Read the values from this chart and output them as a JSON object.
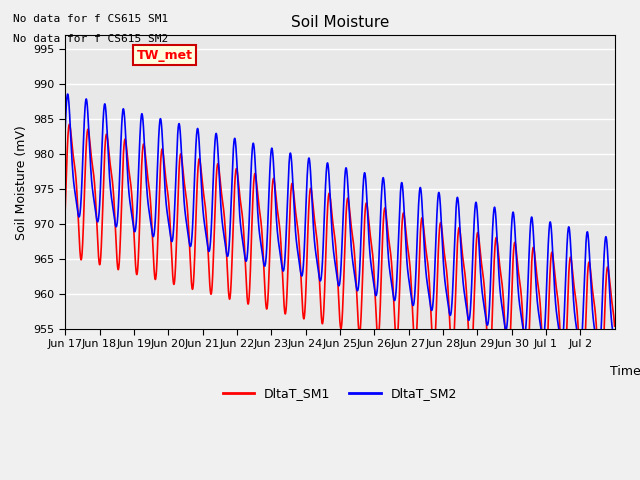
{
  "title": "Soil Moisture",
  "ylabel": "Soil Moisture (mV)",
  "xlabel": "Time",
  "ylim": [
    955,
    997
  ],
  "yticks": [
    955,
    960,
    965,
    970,
    975,
    980,
    985,
    990,
    995
  ],
  "line1_color": "#ff0000",
  "line2_color": "#0000ff",
  "line1_label": "DltaT_SM1",
  "line2_label": "DltaT_SM2",
  "annotation_text1": "No data for f CS615 SM1",
  "annotation_text2": "No data for f CS615 SM2",
  "inset_label": "TW_met",
  "axes_bg_color": "#e8e8e8",
  "fig_bg_color": "#f0f0f0",
  "grid_color": "#ffffff",
  "x_tick_labels": [
    "Jun 17",
    "Jun 18",
    "Jun 19",
    "Jun 20",
    "Jun 21",
    "Jun 22",
    "Jun 23",
    "Jun 24",
    "Jun 25",
    "Jun 26",
    "Jun 27",
    "Jun 28",
    "Jun 29",
    "Jun 30",
    "Jul 1",
    "Jul 2"
  ],
  "n_days": 16,
  "sm1_base": 976,
  "sm2_base": 979,
  "trend_slope": -1.3,
  "omega_cycles_per_day": 1.85,
  "sm1_amp": 8.5,
  "sm2_amp": 8.0,
  "sm1_phase": -0.4,
  "sm2_phase": 0.55,
  "sm1_harm_amp": 2.5,
  "sm2_harm_amp": 2.0,
  "sm1_harm_phase": -0.2,
  "sm2_harm_phase": 0.3
}
